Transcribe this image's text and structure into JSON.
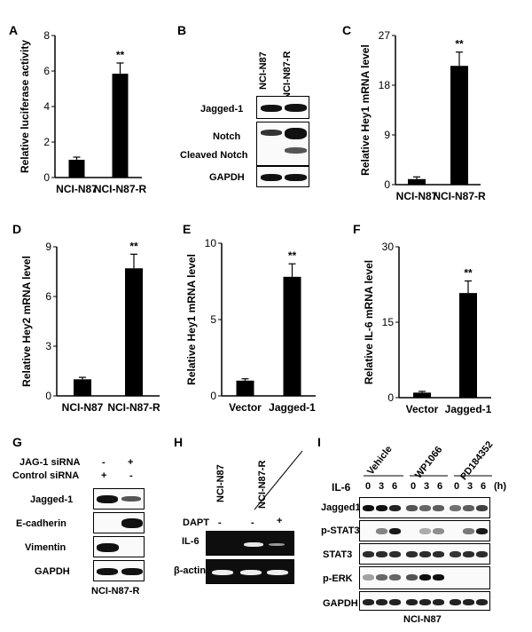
{
  "panels": {
    "A": {
      "letter": "A"
    },
    "B": {
      "letter": "B",
      "lanes": [
        "NCI-N87",
        "NCI-N87-R"
      ],
      "rows": [
        "Jagged-1",
        "Notch",
        "Cleaved Notch",
        "GAPDH"
      ]
    },
    "C": {
      "letter": "C"
    },
    "D": {
      "letter": "D"
    },
    "E": {
      "letter": "E"
    },
    "F": {
      "letter": "F"
    },
    "G": {
      "letter": "G",
      "cond1": "JAG-1 siRNA",
      "cond2": "Control siRNA",
      "signs1": [
        "-",
        "+"
      ],
      "signs2": [
        "+",
        "-"
      ],
      "rows": [
        "Jagged-1",
        "E-cadherin",
        "Vimentin",
        "GAPDH"
      ],
      "cell": "NCI-N87-R"
    },
    "H": {
      "letter": "H",
      "lanes": [
        "NCI-N87",
        "NCI-N87-R"
      ],
      "dapt": "DAPT",
      "dapt_signs": [
        "-",
        "-",
        "+"
      ],
      "rows": [
        "IL-6",
        "β-actin"
      ]
    },
    "I": {
      "letter": "I",
      "groups": [
        "Vehicle",
        "WP1066",
        "PD184352"
      ],
      "il6": "IL-6",
      "times": [
        "0",
        "3",
        "6"
      ],
      "unit": "(h)",
      "rows": [
        "Jagged1",
        "p-STAT3",
        "STAT3",
        "p-ERK",
        "GAPDH"
      ],
      "cell": "NCI-N87"
    }
  },
  "chart_data": [
    {
      "panel": "A",
      "type": "bar",
      "categories": [
        "NCI-N87",
        "NCI-N87-R"
      ],
      "values": [
        1.0,
        5.85
      ],
      "errors": [
        0.15,
        0.6
      ],
      "ylabel": "Relative luciferase activity",
      "ylim": [
        0,
        8
      ],
      "yticks": [
        0,
        2,
        4,
        6,
        8
      ],
      "significance": [
        "",
        "**"
      ]
    },
    {
      "panel": "C",
      "type": "bar",
      "categories": [
        "NCI-N87",
        "NCI-N87-R"
      ],
      "values": [
        1.0,
        21.5
      ],
      "errors": [
        0.4,
        2.5
      ],
      "ylabel": "Relative Hey1 mRNA level",
      "ylim": [
        0,
        27
      ],
      "yticks": [
        0,
        9,
        18,
        27
      ],
      "significance": [
        "",
        "**"
      ]
    },
    {
      "panel": "D",
      "type": "bar",
      "categories": [
        "NCI-N87",
        "NCI-N87-R"
      ],
      "values": [
        1.0,
        7.7
      ],
      "errors": [
        0.12,
        0.85
      ],
      "ylabel": "Relative Hey2 mRNA level",
      "ylim": [
        0,
        9
      ],
      "yticks": [
        0,
        3,
        6,
        9
      ],
      "significance": [
        "",
        "**"
      ]
    },
    {
      "panel": "E",
      "type": "bar",
      "categories": [
        "Vector",
        "Jagged-1"
      ],
      "values": [
        1.0,
        7.8
      ],
      "errors": [
        0.12,
        0.85
      ],
      "ylabel": "Relative Hey1 mRNA level",
      "ylim": [
        0,
        10
      ],
      "yticks": [
        0,
        5,
        10
      ],
      "significance": [
        "",
        "**"
      ]
    },
    {
      "panel": "F",
      "type": "bar",
      "categories": [
        "Vector",
        "Jagged-1"
      ],
      "values": [
        1.0,
        20.8
      ],
      "errors": [
        0.25,
        2.4
      ],
      "ylabel": "Relative IL-6 mRNA level",
      "ylim": [
        0,
        30
      ],
      "yticks": [
        0,
        15,
        30
      ],
      "significance": [
        "",
        "**"
      ]
    }
  ]
}
